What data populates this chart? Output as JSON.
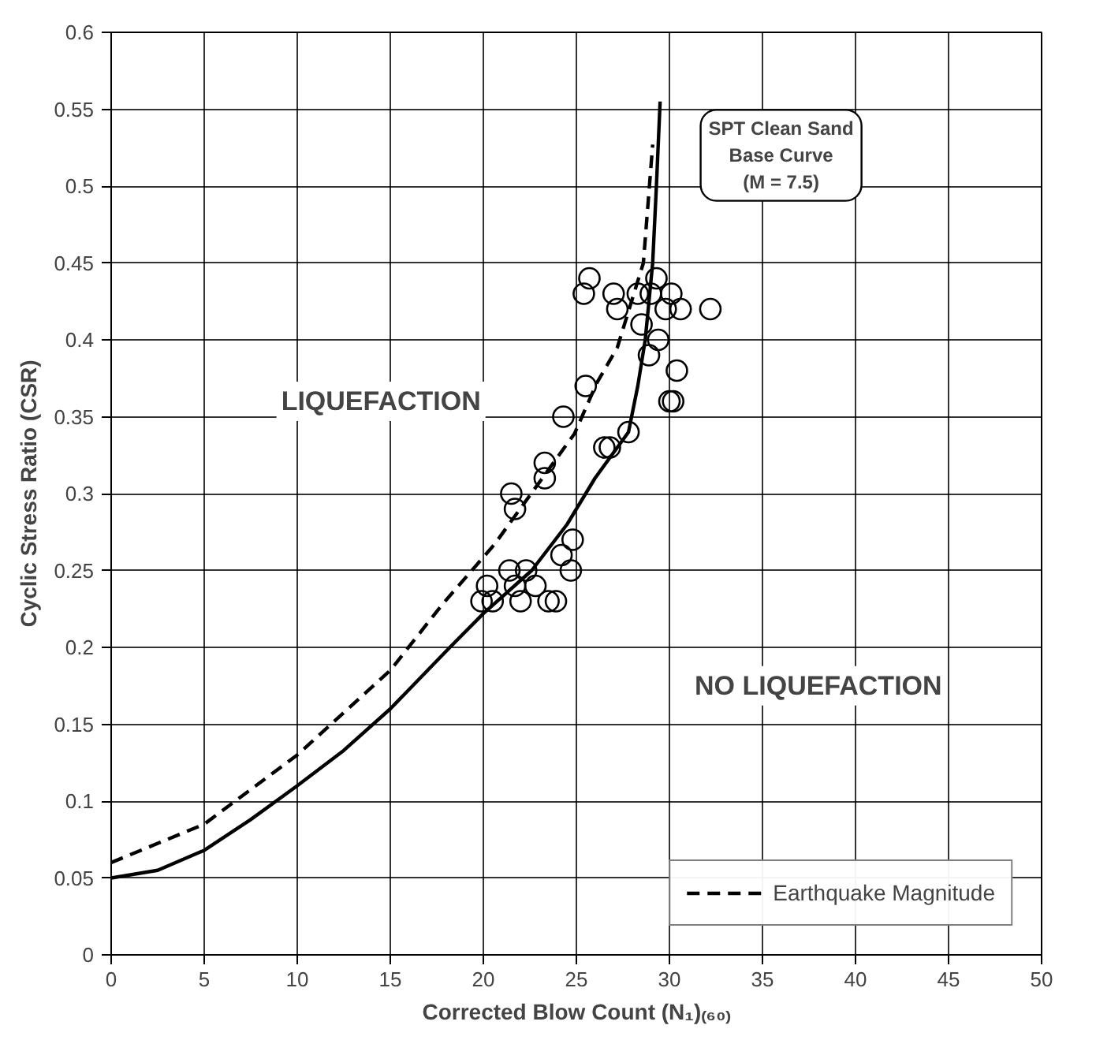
{
  "chart_data": {
    "type": "line",
    "xlabel": "Corrected Blow Count (N₁)₍₆₀₎",
    "ylabel": "Cyclic Stress Ratio (CSR)",
    "xlim": [
      0,
      50
    ],
    "ylim": [
      0,
      0.6
    ],
    "xticks": [
      0,
      5,
      10,
      15,
      20,
      25,
      30,
      35,
      40,
      45,
      50
    ],
    "yticks": [
      0,
      0.05,
      0.1,
      0.15,
      0.2,
      0.25,
      0.3,
      0.35,
      0.4,
      0.45,
      0.5,
      0.55,
      0.6
    ],
    "grid": true,
    "legend": "bottom right",
    "annotations": [
      "LIQUEFACTION",
      "NO LIQUEFACTION"
    ],
    "series": [
      {
        "name": "SPT Clean Sand\nBase Curve\n(M = 7.5)",
        "line_style": "solid",
        "color": "#000000",
        "x": [
          0,
          2.5,
          5,
          7.5,
          10,
          12.5,
          15,
          17,
          18.2,
          20,
          22.6,
          24.5,
          26,
          27.8,
          28.3,
          28.7,
          29.1,
          29.3,
          29.5
        ],
        "values": [
          0.05,
          0.055,
          0.068,
          0.088,
          0.11,
          0.133,
          0.16,
          0.185,
          0.2,
          0.222,
          0.25,
          0.28,
          0.31,
          0.34,
          0.37,
          0.4,
          0.45,
          0.5,
          0.555
        ]
      },
      {
        "name": "Earthquake Magnitude",
        "line_style": "dashed",
        "color": "#000000",
        "x": [
          0,
          5,
          10,
          15,
          17.8,
          20.6,
          24.9,
          26.1,
          27.2,
          28.6,
          29.1
        ],
        "values": [
          0.06,
          0.085,
          0.13,
          0.185,
          0.228,
          0.267,
          0.339,
          0.372,
          0.395,
          0.45,
          0.527
        ]
      },
      {
        "type": "scatter",
        "marker": "circle",
        "color": "#000000",
        "x": [
          25.7,
          25.4,
          27.0,
          27.2,
          28.3,
          29.3,
          29.0,
          30.1,
          29.8,
          30.6,
          32.2,
          28.5,
          29.4,
          28.9,
          30.4,
          30.0,
          30.2,
          25.5,
          27.8,
          26.5,
          26.8,
          24.3,
          23.3,
          23.3,
          21.5,
          21.7,
          24.8,
          24.2,
          24.7,
          21.4,
          22.3,
          20.2,
          22.8,
          21.7,
          19.9,
          20.5,
          22.0,
          23.5,
          23.9
        ],
        "values": [
          0.44,
          0.43,
          0.43,
          0.42,
          0.43,
          0.44,
          0.43,
          0.43,
          0.42,
          0.42,
          0.42,
          0.41,
          0.4,
          0.39,
          0.38,
          0.36,
          0.36,
          0.37,
          0.34,
          0.33,
          0.33,
          0.35,
          0.32,
          0.31,
          0.3,
          0.29,
          0.27,
          0.26,
          0.25,
          0.25,
          0.25,
          0.24,
          0.24,
          0.24,
          0.23,
          0.23,
          0.23,
          0.23,
          0.23
        ]
      }
    ]
  }
}
